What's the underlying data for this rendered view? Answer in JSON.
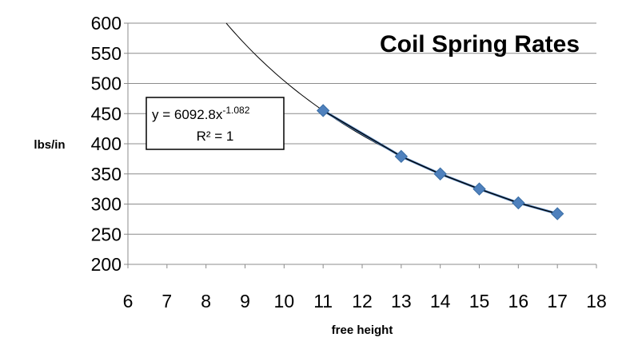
{
  "chart_data": {
    "type": "scatter",
    "title": "Coil Spring Rates",
    "xlabel": "free height",
    "ylabel": "lbs/in",
    "xlim": [
      6,
      18
    ],
    "ylim": [
      200,
      600
    ],
    "x_ticks": [
      "6",
      "7",
      "8",
      "9",
      "10",
      "11",
      "12",
      "13",
      "14",
      "15",
      "16",
      "17",
      "18"
    ],
    "y_ticks": [
      "600",
      "550",
      "500",
      "450",
      "400",
      "350",
      "300",
      "250",
      "200"
    ],
    "grid": "horizontal",
    "series": [
      {
        "x": [
          11,
          13,
          14,
          15,
          16,
          17
        ],
        "y": [
          455,
          379,
          350,
          325,
          302,
          284
        ],
        "color": "#4F81BD",
        "marker": "diamond"
      }
    ],
    "trendline": {
      "type": "power",
      "coefficient": 6092.8,
      "exponent": -1.082,
      "color": "#000000"
    },
    "annotation": {
      "equation_base": "y = 6092.8x",
      "equation_exponent": "-1.082",
      "r_squared": "R² = 1"
    }
  }
}
